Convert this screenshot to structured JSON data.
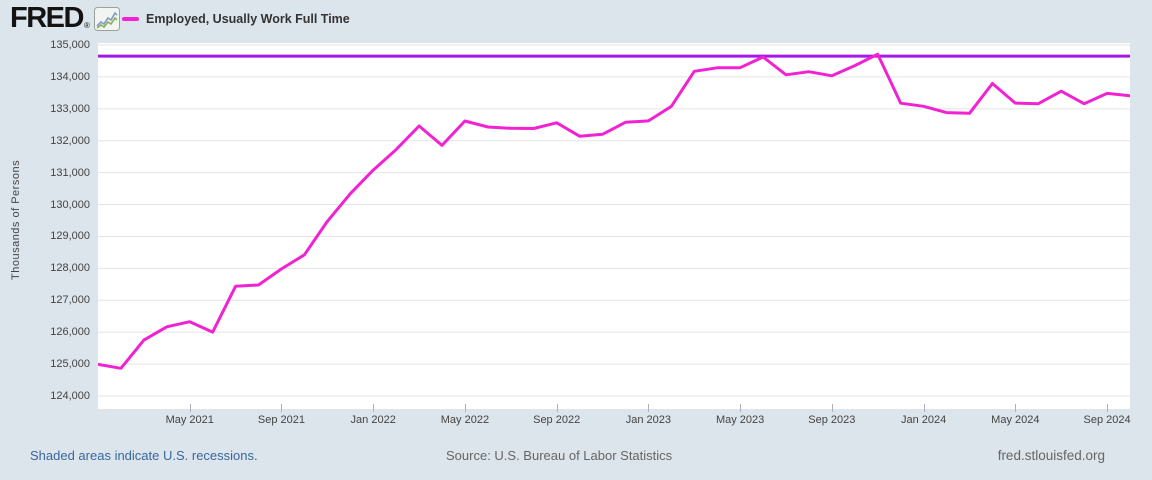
{
  "header": {
    "logo_text": "FRED",
    "registered_mark": "®",
    "logo_chart_icon": "line-chart-icon",
    "legend": {
      "series_label": "Employed, Usually Work Full Time",
      "swatch_color": "#f122d2"
    }
  },
  "footer": {
    "recessions_note": "Shaded areas indicate U.S. recessions.",
    "source": "Source: U.S. Bureau of Labor Statistics",
    "site": "fred.stlouisfed.org"
  },
  "colors": {
    "background": "#dce4ec",
    "plot_background": "#ffffff",
    "series_line": "#f122d2",
    "reference_line": "#a418ea",
    "gridline": "#e4e4e4",
    "axis_text": "#444444",
    "footer_link": "#38689c",
    "footer_text": "#666666"
  },
  "chart_data": {
    "type": "line",
    "title": "Employed, Usually Work Full Time",
    "xlabel": "",
    "ylabel": "Thousands of Persons",
    "ylim": [
      124000,
      135000
    ],
    "grid": "horizontal",
    "legend_position": "top-left",
    "y_ticks": [
      {
        "label": "135,000",
        "value": 135000
      },
      {
        "label": "134,000",
        "value": 134000
      },
      {
        "label": "133,000",
        "value": 133000
      },
      {
        "label": "132,000",
        "value": 132000
      },
      {
        "label": "131,000",
        "value": 131000
      },
      {
        "label": "130,000",
        "value": 130000
      },
      {
        "label": "129,000",
        "value": 129000
      },
      {
        "label": "128,000",
        "value": 128000
      },
      {
        "label": "127,000",
        "value": 127000
      },
      {
        "label": "126,000",
        "value": 126000
      },
      {
        "label": "125,000",
        "value": 125000
      },
      {
        "label": "124,000",
        "value": 124000
      }
    ],
    "x_ticks": [
      {
        "label": "May 2021",
        "month_index": 4
      },
      {
        "label": "Sep 2021",
        "month_index": 8
      },
      {
        "label": "Jan 2022",
        "month_index": 12
      },
      {
        "label": "May 2022",
        "month_index": 16
      },
      {
        "label": "Sep 2022",
        "month_index": 20
      },
      {
        "label": "Jan 2023",
        "month_index": 24
      },
      {
        "label": "May 2023",
        "month_index": 28
      },
      {
        "label": "Sep 2023",
        "month_index": 32
      },
      {
        "label": "Jan 2024",
        "month_index": 36
      },
      {
        "label": "May 2024",
        "month_index": 40
      },
      {
        "label": "Sep 2024",
        "month_index": 44
      }
    ],
    "x": [
      "2021-01",
      "2021-02",
      "2021-03",
      "2021-04",
      "2021-05",
      "2021-06",
      "2021-07",
      "2021-08",
      "2021-09",
      "2021-10",
      "2021-11",
      "2021-12",
      "2022-01",
      "2022-02",
      "2022-03",
      "2022-04",
      "2022-05",
      "2022-06",
      "2022-07",
      "2022-08",
      "2022-09",
      "2022-10",
      "2022-11",
      "2022-12",
      "2023-01",
      "2023-02",
      "2023-03",
      "2023-04",
      "2023-05",
      "2023-06",
      "2023-07",
      "2023-08",
      "2023-09",
      "2023-10",
      "2023-11",
      "2023-12",
      "2024-01",
      "2024-02",
      "2024-03",
      "2024-04",
      "2024-05",
      "2024-06",
      "2024-07",
      "2024-08",
      "2024-09",
      "2024-10"
    ],
    "series": [
      {
        "name": "Employed, Usually Work Full Time",
        "color": "#f122d2",
        "values": [
          124993,
          124868,
          125751,
          126169,
          126327,
          126004,
          127440,
          127480,
          127983,
          128425,
          129473,
          130341,
          131079,
          131722,
          132462,
          131854,
          132619,
          132430,
          132390,
          132383,
          132562,
          132141,
          132200,
          132577,
          132620,
          133075,
          134175,
          134285,
          134289,
          134623,
          134065,
          134164,
          134034,
          134353,
          134713,
          133176,
          133078,
          132883,
          132858,
          133794,
          133180,
          133161,
          133553,
          133159,
          133483,
          133412
        ]
      }
    ],
    "reference_line": {
      "value": 134650,
      "color": "#a418ea"
    }
  }
}
